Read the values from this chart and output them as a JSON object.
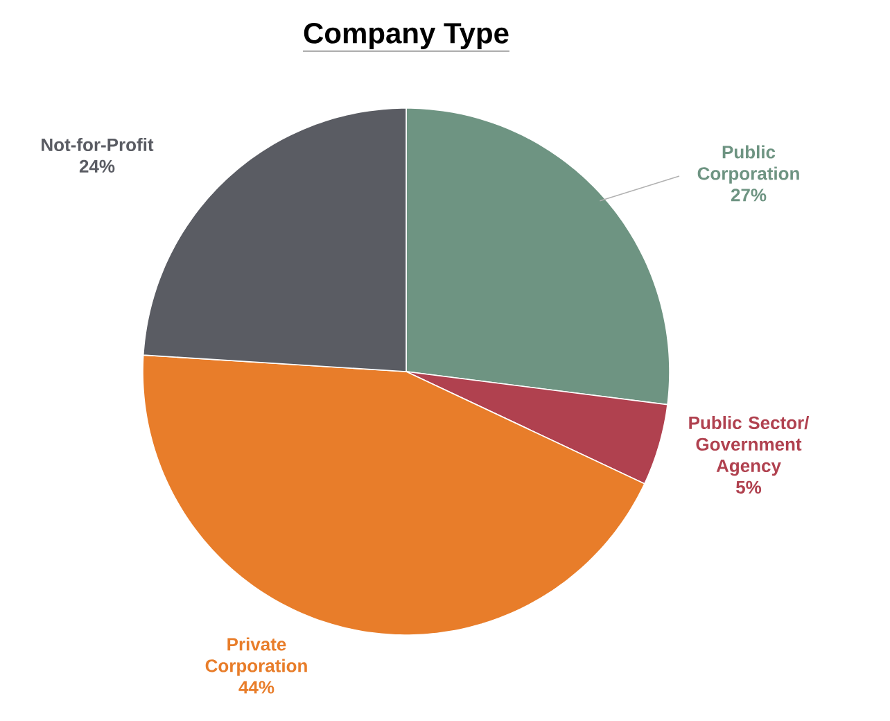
{
  "chart_data": {
    "type": "pie",
    "title": "Company Type",
    "categories": [
      "Public Corporation",
      "Public Sector/ Government Agency",
      "Private Corporation",
      "Not-for-Profit"
    ],
    "values": [
      27,
      5,
      44,
      24
    ],
    "value_labels": [
      "27%",
      "5%",
      "44%",
      "24%"
    ],
    "colors": [
      "#6e9482",
      "#b0414f",
      "#e87d2a",
      "#5a5c63"
    ]
  }
}
